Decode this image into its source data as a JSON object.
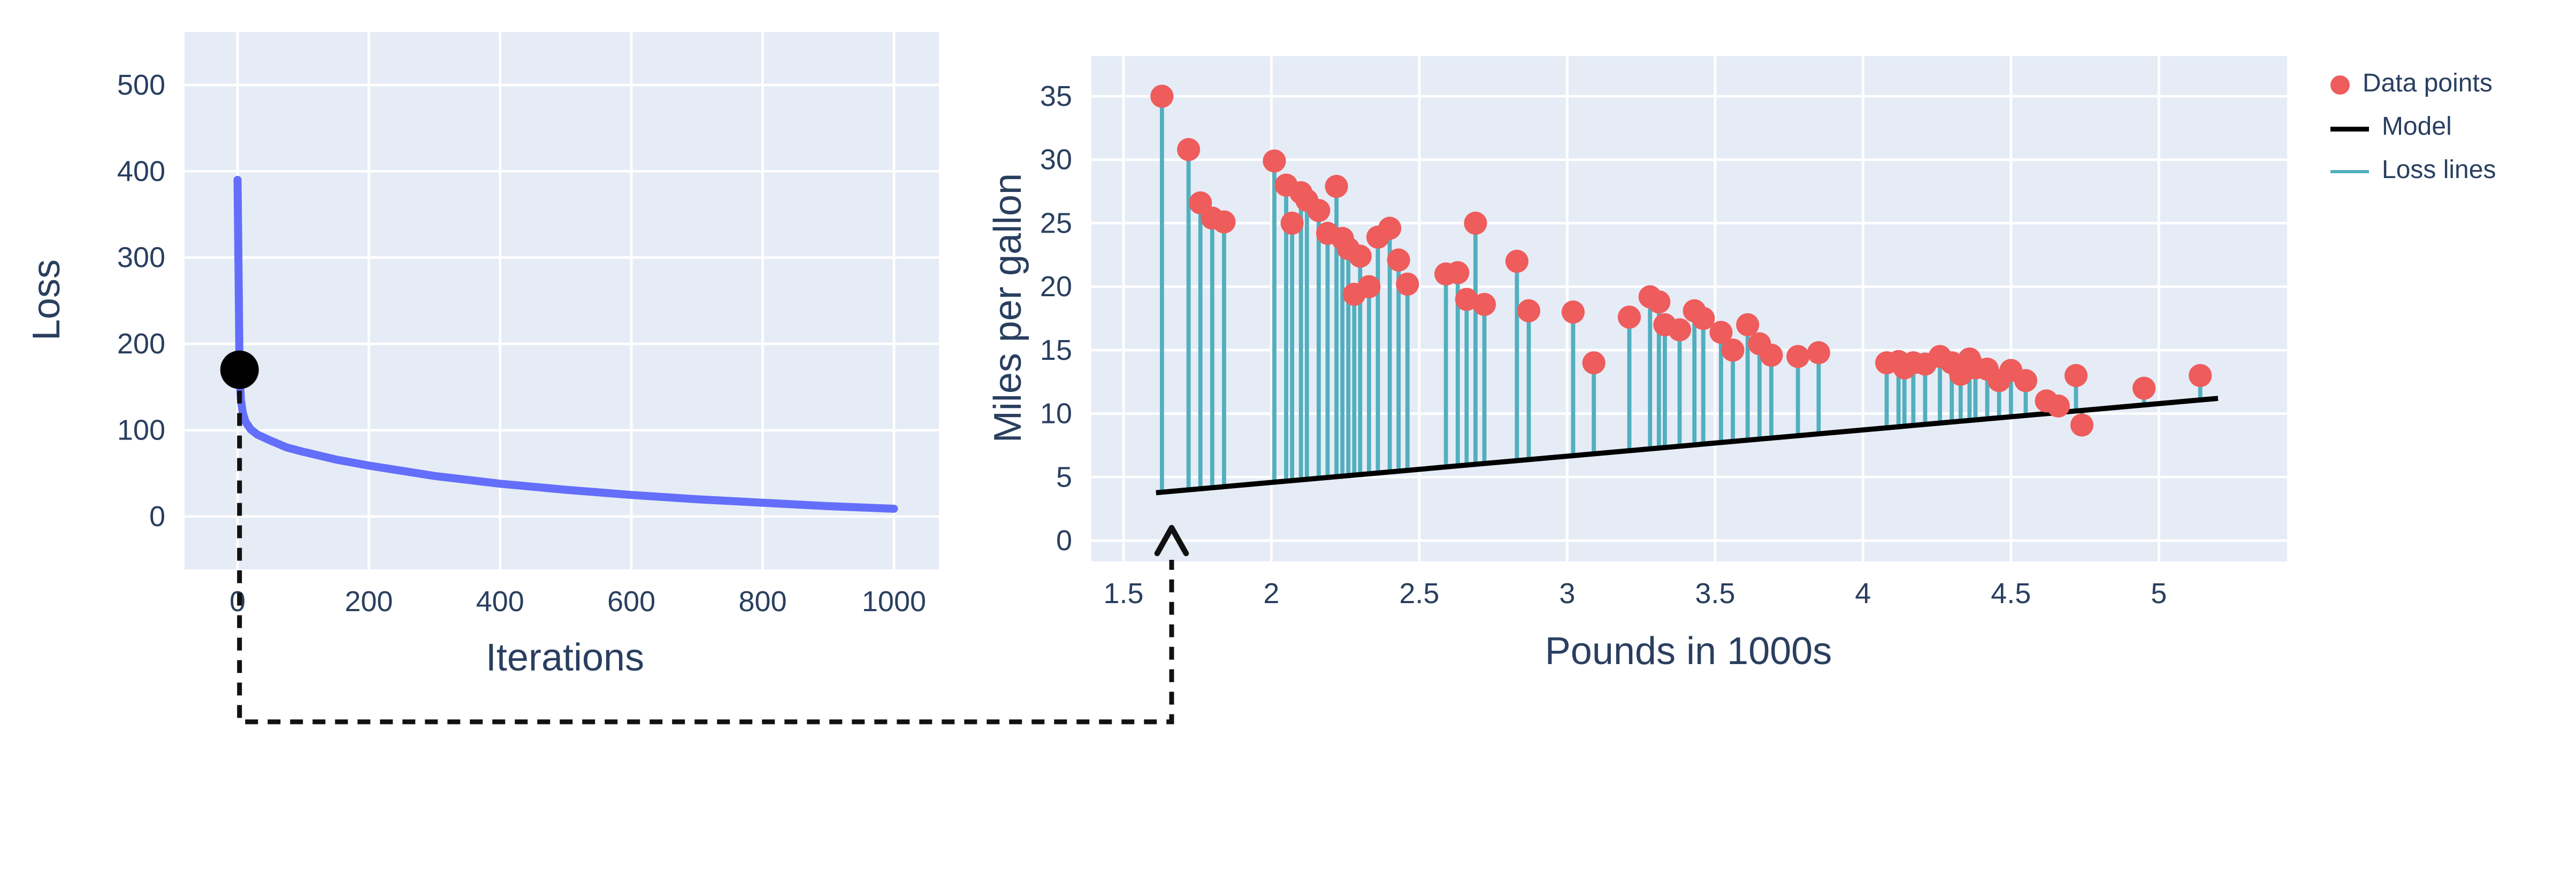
{
  "colors": {
    "plot_bg": "#e5ecf6",
    "grid": "#ffffff",
    "axis_text": "#2a3f5f",
    "loss_curve": "#636efa",
    "marker_dot": "#000000",
    "data_point": "#ee5c5c",
    "model_line": "#000000",
    "loss_line": "#52afbe",
    "connector": "#111111"
  },
  "annotation": {
    "type": "dashed-connector-arrow",
    "from": "loss-curve-marker",
    "to": "model-line-start"
  },
  "chart_data": [
    {
      "id": "loss-curve",
      "type": "line",
      "xlabel": "Iterations",
      "ylabel": "Loss",
      "x": [
        0,
        1,
        2,
        3,
        5,
        8,
        12,
        20,
        30,
        50,
        75,
        100,
        150,
        200,
        250,
        300,
        400,
        500,
        600,
        700,
        800,
        900,
        1000
      ],
      "y": [
        390,
        320,
        250,
        170,
        136,
        120,
        110,
        101,
        95,
        88,
        80,
        75,
        66,
        59,
        53,
        47,
        38,
        31,
        25,
        20,
        16,
        12,
        9
      ],
      "xticks": [
        0,
        200,
        400,
        600,
        800,
        1000
      ],
      "yticks": [
        0,
        100,
        200,
        300,
        400,
        500
      ],
      "xlim": [
        -80.7,
        1068.5
      ],
      "ylim": [
        -61.3,
        561.2
      ],
      "grid": true,
      "bg": "#e5ecf6",
      "line_color": "#636efa",
      "line_width": 5,
      "marker": {
        "x": 3,
        "y": 170,
        "color": "#000000",
        "radius": 12
      }
    },
    {
      "id": "model-fit",
      "type": "scatter",
      "xlabel": "Pounds in 1000s",
      "ylabel": "Miles per gallon",
      "points": [
        [
          1.63,
          35.0
        ],
        [
          1.72,
          30.8
        ],
        [
          1.76,
          26.6
        ],
        [
          1.8,
          25.4
        ],
        [
          1.84,
          25.1
        ],
        [
          2.01,
          29.9
        ],
        [
          2.05,
          28.0
        ],
        [
          2.07,
          25.0
        ],
        [
          2.1,
          27.4
        ],
        [
          2.12,
          26.8
        ],
        [
          2.16,
          26.0
        ],
        [
          2.19,
          24.2
        ],
        [
          2.22,
          27.9
        ],
        [
          2.24,
          23.8
        ],
        [
          2.26,
          23.0
        ],
        [
          2.28,
          19.4
        ],
        [
          2.3,
          22.4
        ],
        [
          2.33,
          20.0
        ],
        [
          2.36,
          23.9
        ],
        [
          2.4,
          24.6
        ],
        [
          2.43,
          22.1
        ],
        [
          2.46,
          20.2
        ],
        [
          2.59,
          21.0
        ],
        [
          2.63,
          21.1
        ],
        [
          2.66,
          19.0
        ],
        [
          2.69,
          25.0
        ],
        [
          2.72,
          18.6
        ],
        [
          2.83,
          22.0
        ],
        [
          2.87,
          18.1
        ],
        [
          3.02,
          18.0
        ],
        [
          3.09,
          14.0
        ],
        [
          3.21,
          17.6
        ],
        [
          3.28,
          19.2
        ],
        [
          3.31,
          18.8
        ],
        [
          3.33,
          17.0
        ],
        [
          3.38,
          16.6
        ],
        [
          3.43,
          18.1
        ],
        [
          3.46,
          17.5
        ],
        [
          3.52,
          16.4
        ],
        [
          3.56,
          15.0
        ],
        [
          3.61,
          17.0
        ],
        [
          3.65,
          15.5
        ],
        [
          3.69,
          14.6
        ],
        [
          3.78,
          14.5
        ],
        [
          3.85,
          14.8
        ],
        [
          4.08,
          14.0
        ],
        [
          4.12,
          14.1
        ],
        [
          4.14,
          13.6
        ],
        [
          4.17,
          14.0
        ],
        [
          4.21,
          13.9
        ],
        [
          4.26,
          14.5
        ],
        [
          4.3,
          14.0
        ],
        [
          4.33,
          13.1
        ],
        [
          4.36,
          14.3
        ],
        [
          4.38,
          13.6
        ],
        [
          4.42,
          13.5
        ],
        [
          4.46,
          12.6
        ],
        [
          4.5,
          13.4
        ],
        [
          4.55,
          12.6
        ],
        [
          4.62,
          11.0
        ],
        [
          4.66,
          10.6
        ],
        [
          4.72,
          13.0
        ],
        [
          4.74,
          9.1
        ],
        [
          4.95,
          12.0
        ],
        [
          5.14,
          13.0
        ]
      ],
      "model_line": {
        "x": [
          1.61,
          5.2
        ],
        "y": [
          3.77,
          11.2
        ],
        "color": "#000000"
      },
      "point_color": "#ee5c5c",
      "loss_line_color": "#52afbe",
      "xticks": [
        1.5,
        2,
        2.5,
        3,
        3.5,
        4,
        4.5,
        5
      ],
      "yticks": [
        0,
        5,
        10,
        15,
        20,
        25,
        30,
        35
      ],
      "xlim": [
        1.3915,
        5.4336
      ],
      "ylim": [
        -1.643,
        38.158
      ],
      "grid": true,
      "bg": "#e5ecf6",
      "legend": [
        {
          "label": "Data points",
          "type": "marker"
        },
        {
          "label": "Model",
          "type": "line"
        },
        {
          "label": "Loss lines",
          "type": "line"
        }
      ],
      "legend_position": "right"
    }
  ]
}
